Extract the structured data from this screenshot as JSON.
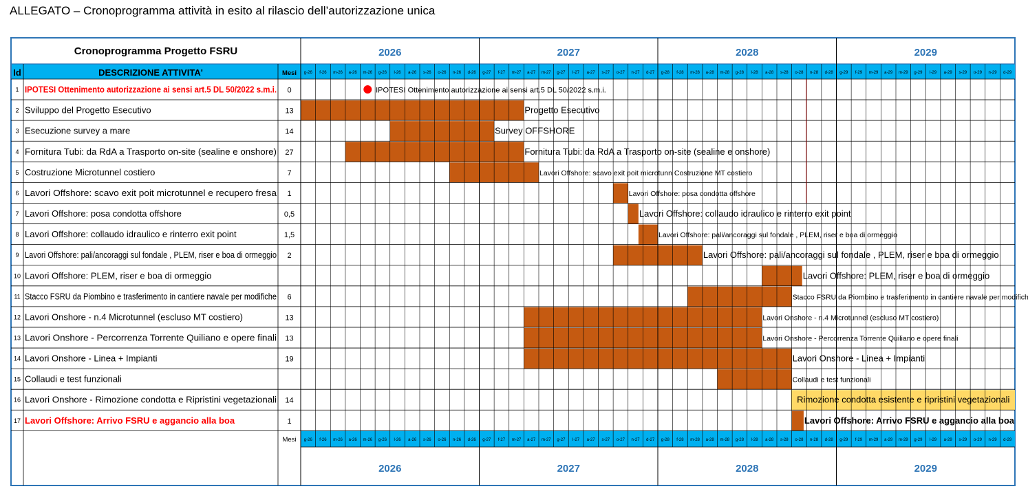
{
  "document_title": "ALLEGATO – Cronoprogramma attività in esito al rilascio dell’autorizzazione unica",
  "table_title": "Cronoprogramma Progetto FSRU",
  "headers": {
    "id": "Id",
    "description": "DESCRIZIONE ATTIVITA'",
    "months": "Mesi"
  },
  "years": [
    "2026",
    "2027",
    "2028",
    "2029"
  ],
  "months": [
    "g-26",
    "f-26",
    "m-26",
    "a-26",
    "m-26",
    "g-26",
    "l-26",
    "a-26",
    "s-26",
    "o-26",
    "n-26",
    "d-26",
    "g-27",
    "f-27",
    "m-27",
    "a-27",
    "m-27",
    "g-27",
    "l-27",
    "a-27",
    "s-27",
    "o-27",
    "n-27",
    "d-27",
    "g-28",
    "f-28",
    "m-28",
    "a-28",
    "m-28",
    "g-28",
    "l-28",
    "a-28",
    "s-28",
    "o-28",
    "n-28",
    "d-28",
    "g-29",
    "f-29",
    "m-29",
    "a-29",
    "m-29",
    "g-29",
    "l-29",
    "a-29",
    "s-29",
    "o-29",
    "n-29",
    "d-29"
  ],
  "colors": {
    "bar": "#c55a11",
    "header_blue": "#00b0f0",
    "milestone": "#ff0000",
    "highlight": "#ffd966",
    "border": "#2e75b6",
    "year_text": "#2e75b6",
    "red_text": "#ff0000"
  },
  "activities": [
    {
      "id": "1",
      "description": "IPOTESI Ottenimento autorizzazione ai sensi art.5 DL 50/2022 s.m.i.",
      "months": "0",
      "red": true,
      "milestone": 4,
      "label": "IPOTESI Ottenimento autorizzazione ai sensi art.5 DL 50/2022 s.m.i."
    },
    {
      "id": "2",
      "description": "Sviluppo del Progetto Esecutivo",
      "months": "13",
      "start": 0,
      "end": 15,
      "label": "Progetto Esecutivo"
    },
    {
      "id": "3",
      "description": "Esecuzione survey a mare",
      "months": "14",
      "start": 6,
      "end": 13,
      "label": "Survey OFFSHORE"
    },
    {
      "id": "4",
      "description": "Fornitura Tubi: da RdA a Trasporto on-site (sealine e onshore)",
      "months": "27",
      "start": 3,
      "end": 15,
      "label": "Fornitura Tubi: da RdA a Trasporto on-site (sealine e onshore)"
    },
    {
      "id": "5",
      "description": "Costruzione Microtunnel costiero",
      "months": "7",
      "start": 10,
      "end": 16,
      "label": "Lavori Offshore: scavo exit poit microtunn Costruzione MT costiero"
    },
    {
      "id": "6",
      "description": "Lavori Offshore: scavo exit poit microtunnel e recupero fresa",
      "months": "1",
      "start": 21,
      "end": 22,
      "label": "Lavori Offshore: posa condotta offshore"
    },
    {
      "id": "7",
      "description": "Lavori Offshore: posa condotta offshore",
      "months": "0,5",
      "start": 22,
      "end": 22.7,
      "label": "Lavori Offshore: collaudo idraulico e rinterro exit point"
    },
    {
      "id": "8",
      "description": "Lavori Offshore: collaudo idraulico e rinterro exit point",
      "months": "1,5",
      "start": 22.7,
      "end": 24,
      "label": "Lavori Offshore: pali/ancoraggi sul fondale , PLEM, riser e boa di ormeggio"
    },
    {
      "id": "9",
      "description": "Lavori Offshore: pali/ancoraggi sul fondale , PLEM, riser e boa di ormeggio",
      "months": "2",
      "start": 21,
      "end": 27,
      "label": "Lavori Offshore: pali/ancoraggi sul fondale , PLEM, riser e boa di ormeggio"
    },
    {
      "id": "10",
      "description": "Lavori Offshore:  PLEM, riser e boa di ormeggio",
      "months": "",
      "start": 31,
      "end": 33.7,
      "label": "Lavori Offshore:  PLEM, riser e boa di ormeggio"
    },
    {
      "id": "11",
      "description": "Stacco FSRU da Piombino e trasferimento in cantiere navale per modifiche",
      "months": "6",
      "start": 26,
      "end": 33,
      "label": "Stacco FSRU da Piombino e trasferimento in cantiere navale per modifiche"
    },
    {
      "id": "12",
      "description": "Lavori Onshore - n.4 Microtunnel (escluso MT costiero)",
      "months": "13",
      "start": 15,
      "end": 31,
      "label": "Lavori Onshore - n.4 Microtunnel (escluso MT costiero)"
    },
    {
      "id": "13",
      "description": "Lavori Onshore - Percorrenza Torrente Quiliano e opere finali",
      "months": "13",
      "start": 15,
      "end": 31,
      "label": "Lavori Onshore - Percorrenza Torrente Quiliano e opere finali"
    },
    {
      "id": "14",
      "description": "Lavori Onshore - Linea + Impianti",
      "months": "19",
      "start": 15,
      "end": 33,
      "label": "Lavori Onshore - Linea + Impianti"
    },
    {
      "id": "15",
      "description": "Collaudi e test funzionali",
      "months": "",
      "start": 28,
      "end": 33,
      "label": "Collaudi e test funzionali"
    },
    {
      "id": "16",
      "description": "Lavori Onshore - Rimozione condotta e Ripristini vegetazionali",
      "months": "14",
      "label": "Rimozione condotta esistente e ripristini vegetazionali",
      "highlight": true
    },
    {
      "id": "17",
      "description": "Lavori Offshore: Arrivo FSRU e aggancio alla boa",
      "months": "1",
      "red": true,
      "start": 33,
      "end": 33.8,
      "label": "Lavori Offshore: Arrivo FSRU e aggancio alla boa"
    }
  ]
}
